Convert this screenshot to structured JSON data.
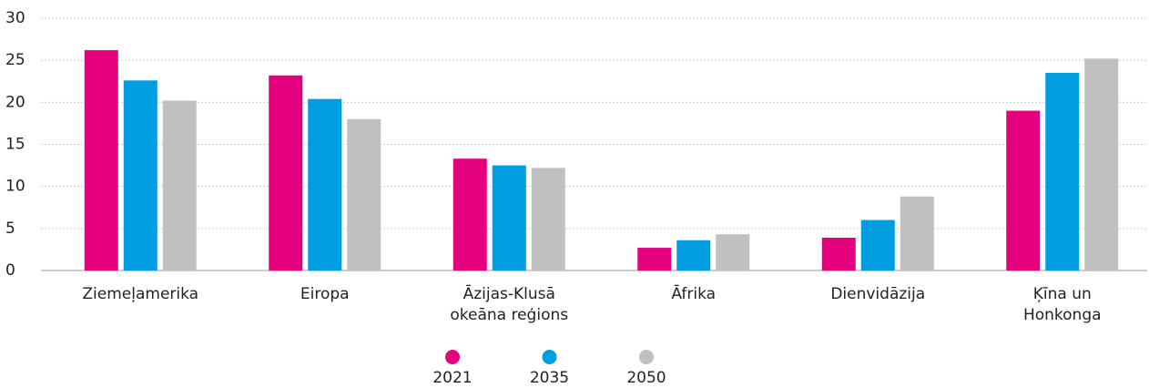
{
  "chart_data": {
    "type": "bar",
    "categories": [
      "Ziemeļamerika",
      "Eiropa",
      "Āzijas-Klusā okeāna reģions",
      "Āfrika",
      "Dienvidāzija",
      "Ķīna un Honkonga"
    ],
    "series": [
      {
        "name": "2021",
        "color": "#e5007e",
        "values": [
          26.2,
          23.2,
          13.3,
          2.7,
          3.9,
          19.0
        ]
      },
      {
        "name": "2035",
        "color": "#009ee0",
        "values": [
          22.6,
          20.4,
          12.5,
          3.6,
          6.0,
          23.5
        ]
      },
      {
        "name": "2050",
        "color": "#c0c0c0",
        "values": [
          20.2,
          18.0,
          12.2,
          4.3,
          8.8,
          25.2
        ]
      }
    ],
    "ylim": [
      0,
      30
    ],
    "yticks": [
      0,
      5,
      10,
      15,
      20,
      25,
      30
    ],
    "grid": true,
    "legend": "bottom"
  }
}
